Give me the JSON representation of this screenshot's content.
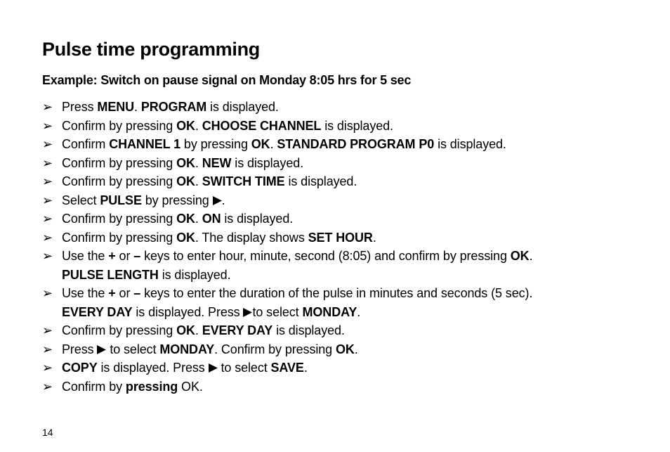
{
  "typography": {
    "font_family": "Arial, Helvetica, sans-serif",
    "title_fontsize": 27,
    "subtitle_fontsize": 18,
    "body_fontsize": 18,
    "line_height": 26.5,
    "text_color": "#000000",
    "background_color": "#ffffff",
    "bullet_glyph": "➢",
    "arrow_glyph": "▶"
  },
  "title": "Pulse time programming",
  "subtitle": "Example: Switch on pause signal on Monday 8:05 hrs for 5 sec",
  "steps": [
    [
      {
        "t": "Press "
      },
      {
        "t": "MENU",
        "b": true
      },
      {
        "t": ". "
      },
      {
        "t": "PROGRAM",
        "b": true
      },
      {
        "t": " is displayed."
      }
    ],
    [
      {
        "t": "Confirm by pressing "
      },
      {
        "t": "OK",
        "b": true
      },
      {
        "t": ". "
      },
      {
        "t": "CHOOSE CHANNEL",
        "b": true
      },
      {
        "t": " is displayed."
      }
    ],
    [
      {
        "t": "Confirm "
      },
      {
        "t": "CHANNEL 1",
        "b": true
      },
      {
        "t": " by pressing "
      },
      {
        "t": "OK",
        "b": true
      },
      {
        "t": ". "
      },
      {
        "t": "STANDARD PROGRAM P0",
        "b": true
      },
      {
        "t": " is displayed."
      }
    ],
    [
      {
        "t": "Confirm by pressing "
      },
      {
        "t": "OK",
        "b": true
      },
      {
        "t": ". "
      },
      {
        "t": "NEW",
        "b": true
      },
      {
        "t": " is displayed."
      }
    ],
    [
      {
        "t": "Confirm by pressing "
      },
      {
        "t": "OK",
        "b": true
      },
      {
        "t": ". "
      },
      {
        "t": "SWITCH TIME",
        "b": true
      },
      {
        "t": " is displayed."
      }
    ],
    [
      {
        "t": "Select "
      },
      {
        "t": "PULSE",
        "b": true
      },
      {
        "t": " by pressing "
      },
      {
        "arrow": true
      },
      {
        "t": "."
      }
    ],
    [
      {
        "t": "Confirm by pressing "
      },
      {
        "t": "OK",
        "b": true
      },
      {
        "t": ". "
      },
      {
        "t": "ON",
        "b": true
      },
      {
        "t": " is displayed."
      }
    ],
    [
      {
        "t": "Confirm by pressing "
      },
      {
        "t": "OK",
        "b": true
      },
      {
        "t": ". The display shows "
      },
      {
        "t": "SET HOUR",
        "b": true
      },
      {
        "t": "."
      }
    ],
    [
      {
        "t": "Use the "
      },
      {
        "t": "+",
        "b": true
      },
      {
        "t": " or "
      },
      {
        "t": "–",
        "b": true
      },
      {
        "t": " keys to enter hour, minute, second (8:05) and confirm by pressing "
      },
      {
        "t": "OK",
        "b": true
      },
      {
        "t": "."
      },
      {
        "br": true
      },
      {
        "t": "PULSE LENGTH",
        "b": true
      },
      {
        "t": " is displayed."
      }
    ],
    [
      {
        "t": "Use the "
      },
      {
        "t": "+",
        "b": true
      },
      {
        "t": " or "
      },
      {
        "t": "–",
        "b": true
      },
      {
        "t": " keys to enter the duration of the pulse in minutes and seconds (5 sec)."
      },
      {
        "br": true
      },
      {
        "t": "EVERY DAY",
        "b": true
      },
      {
        "t": " is displayed. Press "
      },
      {
        "arrow": true
      },
      {
        "t": "to select "
      },
      {
        "t": "MONDAY",
        "b": true
      },
      {
        "t": "."
      }
    ],
    [
      {
        "t": "Confirm by pressing "
      },
      {
        "t": "OK",
        "b": true
      },
      {
        "t": ". "
      },
      {
        "t": "EVERY DAY",
        "b": true
      },
      {
        "t": " is displayed."
      }
    ],
    [
      {
        "t": "Press "
      },
      {
        "arrow": true
      },
      {
        "t": " to select "
      },
      {
        "t": "MONDAY",
        "b": true
      },
      {
        "t": ". Confirm by pressing "
      },
      {
        "t": "OK",
        "b": true
      },
      {
        "t": "."
      }
    ],
    [
      {
        "t": "COPY",
        "b": true
      },
      {
        "t": " is displayed. Press "
      },
      {
        "arrow": true
      },
      {
        "t": " to select "
      },
      {
        "t": "SAVE",
        "b": true
      },
      {
        "t": "."
      }
    ],
    [
      {
        "t": "Confirm by "
      },
      {
        "t": "pressing",
        "b": true
      },
      {
        "t": " OK."
      }
    ]
  ],
  "page_number": "14"
}
